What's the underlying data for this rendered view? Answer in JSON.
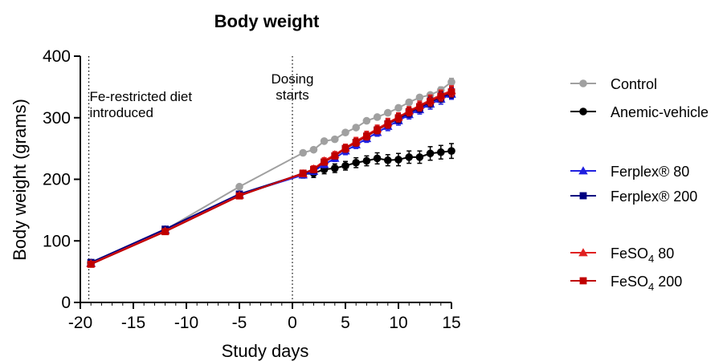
{
  "chart_data": {
    "type": "line",
    "title": "Body weight",
    "xlabel": "Study days",
    "ylabel": "Body weight (grams)",
    "xlim": [
      -20,
      15
    ],
    "ylim": [
      0,
      400
    ],
    "x_ticks": [
      -20,
      -15,
      -10,
      -5,
      0,
      5,
      10,
      15
    ],
    "y_ticks": [
      0,
      100,
      200,
      300,
      400
    ],
    "grid": false,
    "legend_position": "right",
    "annotations": [
      {
        "x": -19.2,
        "lines": [
          "Fe-restricted diet",
          "introduced"
        ]
      },
      {
        "x": 0,
        "lines": [
          "Dosing",
          "starts"
        ]
      }
    ],
    "series": [
      {
        "name": "Control",
        "color": "#a0a0a0",
        "marker": "circle",
        "x": [
          -19,
          -12,
          -5,
          1,
          2,
          3,
          4,
          5,
          6,
          7,
          8,
          9,
          10,
          11,
          12,
          13,
          14,
          15
        ],
        "y": [
          65,
          118,
          188,
          243,
          248,
          262,
          265,
          276,
          284,
          295,
          301,
          308,
          316,
          325,
          333,
          337,
          345,
          358
        ],
        "err": [
          2,
          2,
          2,
          3,
          3,
          3,
          3,
          3,
          3,
          3,
          3,
          3,
          4,
          4,
          4,
          4,
          5,
          6
        ]
      },
      {
        "name": "Anemic-vehicle",
        "color": "#000000",
        "marker": "circle",
        "x": [
          -19,
          -12,
          -5,
          1,
          2,
          3,
          4,
          5,
          6,
          7,
          8,
          9,
          10,
          11,
          12,
          13,
          14,
          15
        ],
        "y": [
          64,
          118,
          174,
          208,
          210,
          216,
          218,
          222,
          227,
          230,
          234,
          231,
          232,
          236,
          236,
          242,
          244,
          246
        ],
        "err": [
          2,
          2,
          3,
          6,
          7,
          7,
          7,
          7,
          8,
          8,
          9,
          9,
          10,
          10,
          10,
          11,
          11,
          12
        ]
      },
      {
        "name": "Ferplex® 80",
        "color": "#2020e0",
        "marker": "triangle",
        "x": [
          -19,
          -12,
          -5,
          1,
          2,
          3,
          4,
          5,
          6,
          7,
          8,
          9,
          10,
          11,
          12,
          13,
          14,
          15
        ],
        "y": [
          64,
          118,
          175,
          207,
          213,
          224,
          234,
          246,
          256,
          266,
          276,
          286,
          295,
          305,
          313,
          322,
          330,
          338
        ],
        "err": [
          2,
          2,
          3,
          4,
          5,
          5,
          5,
          6,
          6,
          6,
          6,
          7,
          7,
          7,
          7,
          8,
          8,
          8
        ]
      },
      {
        "name": "Ferplex® 200",
        "color": "#000080",
        "marker": "square",
        "x": [
          -19,
          -12,
          -5,
          1,
          2,
          3,
          4,
          5,
          6,
          7,
          8,
          9,
          10,
          11,
          12,
          13,
          14,
          15
        ],
        "y": [
          65,
          119,
          176,
          209,
          215,
          228,
          238,
          250,
          260,
          270,
          280,
          290,
          298,
          308,
          316,
          325,
          333,
          340
        ],
        "err": [
          2,
          2,
          3,
          4,
          5,
          5,
          5,
          6,
          6,
          6,
          6,
          7,
          7,
          7,
          7,
          8,
          8,
          8
        ]
      },
      {
        "name": "FeSO4 80",
        "color": "#e02020",
        "marker": "triangle",
        "x": [
          -19,
          -12,
          -5,
          1,
          2,
          3,
          4,
          5,
          6,
          7,
          8,
          9,
          10,
          11,
          12,
          13,
          14,
          15
        ],
        "y": [
          63,
          116,
          174,
          209,
          217,
          230,
          240,
          251,
          262,
          272,
          282,
          292,
          301,
          311,
          320,
          329,
          337,
          344
        ],
        "err": [
          2,
          2,
          3,
          4,
          5,
          5,
          5,
          6,
          6,
          6,
          6,
          7,
          7,
          7,
          7,
          8,
          8,
          8
        ]
      },
      {
        "name": "FeSO4 200",
        "color": "#c00000",
        "marker": "square",
        "x": [
          -19,
          -12,
          -5,
          1,
          2,
          3,
          4,
          5,
          6,
          7,
          8,
          9,
          10,
          11,
          12,
          13,
          14,
          15
        ],
        "y": [
          62,
          115,
          173,
          210,
          216,
          228,
          238,
          250,
          260,
          270,
          280,
          290,
          300,
          310,
          318,
          327,
          335,
          342
        ],
        "err": [
          2,
          2,
          3,
          4,
          5,
          5,
          5,
          6,
          6,
          6,
          6,
          7,
          7,
          7,
          7,
          8,
          8,
          8
        ]
      }
    ],
    "legend_items": [
      {
        "label": "Control",
        "sub": "",
        "suffix": ""
      },
      {
        "label": "Anemic-vehicle",
        "sub": "",
        "suffix": ""
      },
      {
        "label": "Ferplex® 80",
        "sub": "",
        "suffix": ""
      },
      {
        "label": "Ferplex® 200",
        "sub": "",
        "suffix": ""
      },
      {
        "label": "FeSO",
        "sub": "4",
        "suffix": " 80"
      },
      {
        "label": "FeSO",
        "sub": "4",
        "suffix": " 200"
      }
    ]
  }
}
